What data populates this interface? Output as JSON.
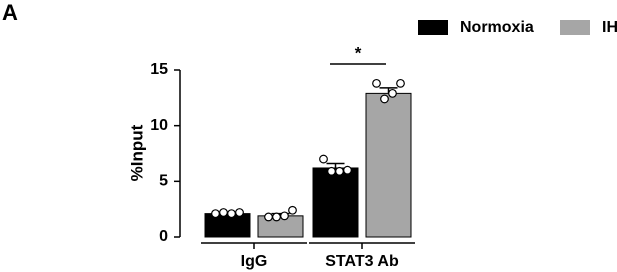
{
  "chart_data": {
    "type": "bar",
    "panel_label": "A",
    "ylabel": "%Input",
    "categories": [
      "IgG",
      "STAT3 Ab"
    ],
    "series": [
      {
        "name": "Normoxia",
        "color": "#000000",
        "values": [
          2.1,
          6.2
        ],
        "errors": [
          0.1,
          0.4
        ],
        "points": [
          [
            2.1,
            2.2,
            2.1,
            2.2
          ],
          [
            7.0,
            5.9,
            5.9,
            6.0
          ]
        ]
      },
      {
        "name": "IH",
        "color": "#a6a6a6",
        "values": [
          1.9,
          12.9
        ],
        "errors": [
          0.2,
          0.5
        ],
        "points": [
          [
            1.8,
            1.8,
            1.9,
            2.4
          ],
          [
            13.8,
            12.4,
            12.9,
            13.8
          ]
        ]
      }
    ],
    "annotations": [
      "*"
    ],
    "ylim": [
      0,
      15
    ],
    "yticks": [
      0,
      5,
      10,
      15
    ],
    "legend": "top-right"
  }
}
